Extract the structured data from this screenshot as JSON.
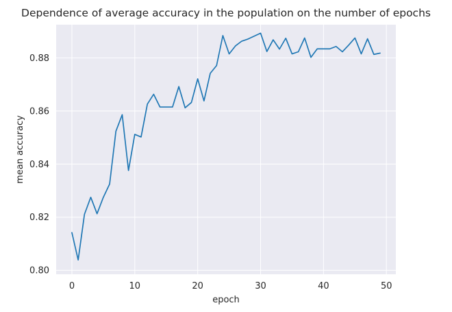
{
  "chart_data": {
    "type": "line",
    "title": "Dependence of average accuracy in the population on the number of epochs",
    "xlabel": "epoch",
    "ylabel": "mean accuracy",
    "xlim": [
      -2.5,
      51.5
    ],
    "ylim": [
      0.7985,
      0.8925
    ],
    "xticks": [
      0,
      10,
      20,
      30,
      40,
      50
    ],
    "yticks": [
      0.8,
      0.82,
      0.84,
      0.86,
      0.88
    ],
    "xtick_labels": [
      "0",
      "10",
      "20",
      "30",
      "40",
      "50"
    ],
    "ytick_labels": [
      "0.80",
      "0.82",
      "0.84",
      "0.86",
      "0.88"
    ],
    "grid": true,
    "background": "#eaeaf2",
    "grid_color": "#ffffff",
    "line_color": "#1f77b4",
    "series": [
      {
        "x": [
          0,
          1,
          2,
          3,
          4,
          5,
          6,
          7,
          8,
          9,
          10,
          11,
          12,
          13,
          14,
          15,
          16,
          17,
          18,
          19,
          20,
          21,
          22,
          23,
          24,
          25,
          26,
          27,
          28,
          29,
          30,
          31,
          32,
          33,
          34,
          35,
          36,
          37,
          38,
          39,
          40,
          41,
          42,
          43,
          44,
          45,
          46,
          47,
          48,
          49
        ],
        "values": [
          0.8142,
          0.8039,
          0.8211,
          0.8275,
          0.8213,
          0.8275,
          0.8325,
          0.8524,
          0.8586,
          0.8376,
          0.8512,
          0.8502,
          0.8626,
          0.8663,
          0.8615,
          0.8615,
          0.8615,
          0.8692,
          0.8612,
          0.8632,
          0.8721,
          0.8638,
          0.8742,
          0.8771,
          0.8884,
          0.8815,
          0.8845,
          0.8863,
          0.8871,
          0.8882,
          0.8893,
          0.8824,
          0.8868,
          0.8833,
          0.8874,
          0.8815,
          0.8823,
          0.8875,
          0.8802,
          0.8834,
          0.8834,
          0.8834,
          0.8843,
          0.8823,
          0.8848,
          0.8875,
          0.8815,
          0.8872,
          0.8813,
          0.8818
        ]
      }
    ]
  }
}
